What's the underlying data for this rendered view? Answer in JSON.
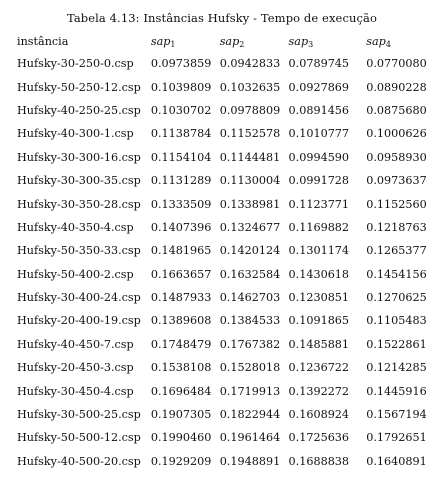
{
  "caption": "Tabela 4.13: Instâncias Hufsky - Tempo de execução",
  "table": {
    "columns": [
      {
        "label": "instância",
        "math": false
      },
      {
        "label": "sap",
        "sub": "1",
        "math": true
      },
      {
        "label": "sap",
        "sub": "2",
        "math": true
      },
      {
        "label": "sap",
        "sub": "3",
        "math": true
      },
      {
        "label": "sap",
        "sub": "4",
        "math": true
      }
    ],
    "rows": [
      {
        "instance": "Hufsky-30-250-0.csp",
        "values": [
          "0.0973859",
          "0.0942833",
          "0.0789745",
          "0.0770080"
        ],
        "best": 3
      },
      {
        "instance": "Hufsky-50-250-12.csp",
        "values": [
          "0.1039809",
          "0.1032635",
          "0.0927869",
          "0.0890228"
        ],
        "best": 3
      },
      {
        "instance": "Hufsky-40-250-25.csp",
        "values": [
          "0.1030702",
          "0.0978809",
          "0.0891456",
          "0.0875680"
        ],
        "best": 3
      },
      {
        "instance": "Hufsky-40-300-1.csp",
        "values": [
          "0.1138784",
          "0.1152578",
          "0.1010777",
          "0.1000626"
        ],
        "best": 3
      },
      {
        "instance": "Hufsky-30-300-16.csp",
        "values": [
          "0.1154104",
          "0.1144481",
          "0.0994590",
          "0.0958930"
        ],
        "best": 3
      },
      {
        "instance": "Hufsky-30-300-35.csp",
        "values": [
          "0.1131289",
          "0.1130004",
          "0.0991728",
          "0.0973637"
        ],
        "best": 3
      },
      {
        "instance": "Hufsky-30-350-28.csp",
        "values": [
          "0.1333509",
          "0.1338981",
          "0.1123771",
          "0.1152560"
        ],
        "best": 2
      },
      {
        "instance": "Hufsky-40-350-4.csp",
        "values": [
          "0.1407396",
          "0.1324677",
          "0.1169882",
          "0.1218763"
        ],
        "best": 2
      },
      {
        "instance": "Hufsky-50-350-33.csp",
        "values": [
          "0.1481965",
          "0.1420124",
          "0.1301174",
          "0.1265377"
        ],
        "best": 3
      },
      {
        "instance": "Hufsky-50-400-2.csp",
        "values": [
          "0.1663657",
          "0.1632584",
          "0.1430618",
          "0.1454156"
        ],
        "best": 2
      },
      {
        "instance": "Hufsky-30-400-24.csp",
        "values": [
          "0.1487933",
          "0.1462703",
          "0.1230851",
          "0.1270625"
        ],
        "best": 2
      },
      {
        "instance": "Hufsky-20-400-19.csp",
        "values": [
          "0.1389608",
          "0.1384533",
          "0.1091865",
          "0.1105483"
        ],
        "best": 2
      },
      {
        "instance": "Hufsky-40-450-7.csp",
        "values": [
          "0.1748479",
          "0.1767382",
          "0.1485881",
          "0.1522861"
        ],
        "best": 2
      },
      {
        "instance": "Hufsky-20-450-3.csp",
        "values": [
          "0.1538108",
          "0.1528018",
          "0.1236722",
          "0.1214285"
        ],
        "best": 3
      },
      {
        "instance": "Hufsky-30-450-4.csp",
        "values": [
          "0.1696484",
          "0.1719913",
          "0.1392272",
          "0.1445916"
        ],
        "best": 2
      },
      {
        "instance": "Hufsky-30-500-25.csp",
        "values": [
          "0.1907305",
          "0.1822944",
          "0.1608924",
          "0.1567194"
        ],
        "best": 3
      },
      {
        "instance": "Hufsky-50-500-12.csp",
        "values": [
          "0.1990460",
          "0.1961464",
          "0.1725636",
          "0.1792651"
        ],
        "best": 2
      },
      {
        "instance": "Hufsky-40-500-20.csp",
        "values": [
          "0.1929209",
          "0.1948891",
          "0.1688838",
          "0.1640891"
        ],
        "best": 3
      }
    ]
  }
}
